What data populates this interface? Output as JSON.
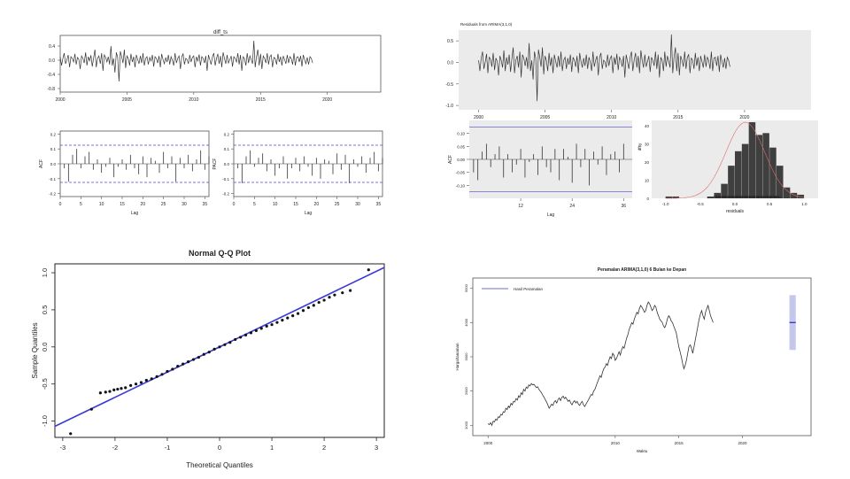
{
  "colors": {
    "line": "#333333",
    "blue": "#3b3bd6",
    "dashed": "#4b4bd6",
    "ggplot_bg": "#ebebeb",
    "bar": "#3f3f3f",
    "band": "#b7b9e6"
  },
  "chart_data": [
    {
      "id": "diff_series",
      "type": "line",
      "title": "diff_ts",
      "xlabel": "",
      "ylabel": "",
      "x_ticks": [
        "2000",
        "2005",
        "2010",
        "2015",
        "2020"
      ],
      "y_ticks": [
        "-0.8",
        "-0.4",
        "0.0",
        "0.4"
      ],
      "xlim": [
        2000,
        2024
      ],
      "ylim": [
        -0.9,
        0.7
      ],
      "series": [
        {
          "x_start": 2000,
          "x_step": 0.1,
          "values": [
            0.1,
            -0.15,
            0.05,
            0.2,
            -0.1,
            0.0,
            0.15,
            -0.2,
            0.1,
            0.05,
            -0.05,
            0.18,
            -0.12,
            0.08,
            0.02,
            -0.25,
            0.12,
            0.05,
            -0.08,
            0.22,
            -0.15,
            0.1,
            -0.02,
            0.14,
            -0.18,
            0.06,
            0.3,
            -0.2,
            0.05,
            0.12,
            -0.1,
            0.2,
            -0.3,
            0.15,
            0.08,
            -0.05,
            0.1,
            -0.12,
            0.4,
            -0.15,
            0.05,
            -0.35,
            0.22,
            0.08,
            -0.6,
            0.25,
            0.1,
            -0.08,
            0.3,
            -0.22,
            0.12,
            0.05,
            -0.15,
            0.18,
            -0.05,
            0.1,
            -0.2,
            0.15,
            0.02,
            -0.1,
            0.12,
            -0.08,
            0.2,
            -0.15,
            0.05,
            0.1,
            -0.12,
            0.08,
            -0.02,
            0.15,
            -0.18,
            0.1,
            0.05,
            -0.08,
            0.12,
            -0.2,
            0.18,
            0.02,
            -0.1,
            0.08,
            -0.05,
            0.15,
            -0.12,
            0.1,
            0.0,
            -0.15,
            0.2,
            -0.08,
            0.05,
            0.12,
            -0.25,
            0.1,
            0.18,
            -0.12,
            0.05,
            0.02,
            -0.1,
            0.15,
            -0.05,
            0.08,
            0.12,
            -0.2,
            0.1,
            -0.02,
            0.16,
            -0.15,
            0.1,
            0.05,
            -0.08,
            0.12,
            -0.3,
            0.15,
            0.02,
            -0.12,
            0.1,
            0.2,
            -0.15,
            0.05,
            0.18,
            -0.1,
            0.12,
            -0.2,
            0.22,
            0.05,
            -0.1,
            0.15,
            -0.08,
            0.02,
            0.12,
            -0.18,
            0.1,
            0.05,
            -0.05,
            0.2,
            -0.12,
            0.15,
            -0.3,
            0.1,
            0.05,
            -0.15,
            0.2,
            -0.08,
            0.12,
            0.02,
            -0.1,
            0.55,
            -0.2,
            0.1,
            0.3,
            -0.15,
            0.18,
            -0.25,
            0.12,
            0.05,
            -0.08,
            0.2,
            -0.12,
            0.1,
            0.15,
            -0.2,
            0.08,
            0.05,
            -0.12,
            0.18,
            -0.05,
            0.1,
            -0.15,
            0.12,
            0.02,
            -0.1,
            0.15,
            -0.08,
            0.1,
            0.05,
            -0.12,
            0.2,
            -0.15,
            0.08,
            0.1,
            -0.05,
            0.12,
            -0.18,
            0.15,
            0.02,
            -0.1,
            0.08,
            -0.12,
            0.1,
            0.05,
            -0.08
          ]
        }
      ]
    },
    {
      "id": "acf",
      "type": "bar",
      "xlabel": "Lag",
      "ylabel": "ACF",
      "x_ticks": [
        "0",
        "5",
        "10",
        "15",
        "20",
        "25",
        "30",
        "35"
      ],
      "y_ticks": [
        "-0.2",
        "-0.1",
        "0.0",
        "0.1",
        "0.2"
      ],
      "xlim": [
        0,
        36
      ],
      "ylim": [
        -0.22,
        0.22
      ],
      "conf": 0.125,
      "lags": [
        1,
        2,
        3,
        4,
        5,
        6,
        7,
        8,
        9,
        10,
        11,
        12,
        13,
        14,
        15,
        16,
        17,
        18,
        19,
        20,
        21,
        22,
        23,
        24,
        25,
        26,
        27,
        28,
        29,
        30,
        31,
        32,
        33,
        34,
        35,
        36
      ],
      "values": [
        -0.03,
        -0.12,
        0.06,
        0.1,
        -0.03,
        0.05,
        0.08,
        -0.04,
        0.03,
        -0.06,
        -0.02,
        0.04,
        -0.09,
        -0.02,
        0.03,
        -0.04,
        0.06,
        -0.03,
        -0.07,
        0.05,
        -0.09,
        0.04,
        0.02,
        -0.06,
        0.08,
        -0.03,
        0.05,
        -0.12,
        0.04,
        -0.03,
        0.06,
        -0.05,
        0.03,
        0.09,
        -0.04,
        0.05
      ]
    },
    {
      "id": "pacf",
      "type": "bar",
      "xlabel": "Lag",
      "ylabel": "PACF",
      "x_ticks": [
        "0",
        "5",
        "10",
        "15",
        "20",
        "25",
        "30",
        "35"
      ],
      "y_ticks": [
        "-0.2",
        "-0.1",
        "0.0",
        "0.1",
        "0.2"
      ],
      "xlim": [
        0,
        36
      ],
      "ylim": [
        -0.22,
        0.22
      ],
      "conf": 0.125,
      "lags": [
        1,
        2,
        3,
        4,
        5,
        6,
        7,
        8,
        9,
        10,
        11,
        12,
        13,
        14,
        15,
        16,
        17,
        18,
        19,
        20,
        21,
        22,
        23,
        24,
        25,
        26,
        27,
        28,
        29,
        30,
        31,
        32,
        33,
        34,
        35,
        36
      ],
      "values": [
        -0.03,
        -0.13,
        0.05,
        0.09,
        -0.02,
        0.04,
        0.07,
        -0.05,
        0.03,
        -0.08,
        -0.03,
        0.05,
        -0.1,
        -0.03,
        0.04,
        -0.05,
        0.05,
        -0.02,
        -0.08,
        0.04,
        -0.1,
        0.03,
        0.02,
        -0.07,
        0.07,
        -0.04,
        0.06,
        -0.13,
        0.03,
        -0.02,
        0.05,
        -0.06,
        0.04,
        0.08,
        -0.05,
        0.04
      ]
    },
    {
      "id": "residual_series",
      "type": "line",
      "title": "Residuals from ARIMA(3,1,0)",
      "x_ticks": [
        "2000",
        "2005",
        "2010",
        "2015",
        "2020"
      ],
      "y_ticks": [
        "0.5",
        "0.0",
        "-0.5",
        "-1.0"
      ],
      "xlim": [
        1998.5,
        2025
      ],
      "ylim": [
        -1.1,
        0.75
      ],
      "series": [
        {
          "x_start": 2000,
          "x_step": 0.1,
          "values": [
            0.05,
            -0.2,
            0.1,
            0.25,
            -0.15,
            0.0,
            0.2,
            -0.25,
            0.12,
            0.08,
            -0.1,
            0.22,
            -0.18,
            0.1,
            0.02,
            -0.3,
            0.15,
            0.05,
            -0.12,
            0.28,
            -0.2,
            0.12,
            -0.05,
            0.18,
            -0.22,
            0.08,
            0.35,
            -0.25,
            0.05,
            0.15,
            -0.12,
            0.25,
            -0.35,
            0.18,
            0.1,
            -0.08,
            0.12,
            -0.15,
            0.45,
            -0.2,
            0.05,
            -0.4,
            0.25,
            0.1,
            -0.9,
            0.3,
            0.12,
            -0.1,
            0.35,
            -0.28,
            0.15,
            0.05,
            -0.2,
            0.22,
            -0.08,
            0.12,
            -0.25,
            0.18,
            0.02,
            -0.12,
            0.15,
            -0.1,
            0.25,
            -0.2,
            0.05,
            0.12,
            -0.15,
            0.1,
            -0.05,
            0.18,
            -0.22,
            0.12,
            0.05,
            -0.1,
            0.15,
            -0.25,
            0.22,
            0.02,
            -0.12,
            0.1,
            -0.08,
            0.18,
            -0.15,
            0.12,
            0.0,
            -0.2,
            0.25,
            -0.1,
            0.05,
            0.15,
            -0.3,
            0.12,
            0.22,
            -0.15,
            0.05,
            0.02,
            -0.12,
            0.18,
            -0.08,
            0.1,
            0.15,
            -0.25,
            0.12,
            -0.05,
            0.2,
            -0.18,
            0.12,
            0.05,
            -0.1,
            0.15,
            -0.35,
            0.18,
            0.02,
            -0.15,
            0.12,
            0.25,
            -0.2,
            0.05,
            0.22,
            -0.12,
            0.15,
            -0.25,
            0.28,
            0.05,
            -0.12,
            0.18,
            -0.1,
            0.02,
            0.15,
            -0.22,
            0.12,
            0.05,
            -0.08,
            0.25,
            -0.15,
            0.18,
            -0.35,
            0.12,
            0.05,
            -0.2,
            0.25,
            -0.1,
            0.15,
            0.02,
            -0.12,
            0.65,
            -0.25,
            0.12,
            0.35,
            -0.2,
            0.22,
            -0.3,
            0.15,
            0.05,
            -0.1,
            0.25,
            -0.15,
            0.12,
            0.18,
            -0.25,
            0.1,
            0.05,
            -0.15,
            0.22,
            -0.08,
            0.12,
            -0.2,
            0.15,
            0.02,
            -0.12,
            0.18,
            -0.1,
            0.12,
            0.05,
            -0.15,
            0.25,
            -0.2,
            0.1,
            0.12,
            -0.08,
            0.15,
            -0.22,
            0.18,
            0.02,
            -0.12,
            0.1,
            -0.15,
            0.12,
            0.05,
            -0.1
          ]
        }
      ]
    },
    {
      "id": "residual_acf",
      "type": "bar",
      "xlabel": "Lag",
      "ylabel": "ACF",
      "x_ticks": [
        "12",
        "24",
        "36"
      ],
      "y_ticks": [
        "0.10",
        "0.05",
        "0.00",
        "-0.05",
        "-0.10"
      ],
      "xlim": [
        0,
        38
      ],
      "ylim": [
        -0.15,
        0.15
      ],
      "conf": 0.125,
      "lags": [
        1,
        2,
        3,
        4,
        5,
        6,
        7,
        8,
        9,
        10,
        11,
        12,
        13,
        14,
        15,
        16,
        17,
        18,
        19,
        20,
        21,
        22,
        23,
        24,
        25,
        26,
        27,
        28,
        29,
        30,
        31,
        32,
        33,
        34,
        35,
        36
      ],
      "values": [
        -0.05,
        -0.08,
        0.03,
        0.06,
        -0.03,
        0.02,
        0.05,
        -0.07,
        0.02,
        -0.05,
        -0.02,
        0.04,
        -0.07,
        -0.01,
        0.02,
        -0.06,
        0.05,
        -0.03,
        -0.05,
        0.04,
        -0.08,
        0.04,
        0.01,
        -0.09,
        0.06,
        -0.03,
        0.04,
        -0.1,
        0.03,
        -0.02,
        0.05,
        -0.06,
        0.02,
        0.03,
        -0.05,
        0.06
      ]
    },
    {
      "id": "residual_hist",
      "type": "bar",
      "xlabel": "residuals",
      "ylabel": "df$y",
      "x_ticks": [
        "-1.0",
        "-0.5",
        "0.0",
        "0.5",
        "1.0"
      ],
      "y_ticks": [
        "0",
        "10",
        "20",
        "30",
        "40"
      ],
      "xlim": [
        -1.2,
        1.2
      ],
      "ylim": [
        0,
        43
      ],
      "bin_edges": [
        -1.0,
        -0.9,
        -0.8,
        -0.7,
        -0.6,
        -0.5,
        -0.4,
        -0.3,
        -0.2,
        -0.1,
        0.0,
        0.1,
        0.2,
        0.3,
        0.4,
        0.5,
        0.6,
        0.7,
        0.8,
        0.9,
        1.0
      ],
      "counts": [
        1,
        1,
        0,
        0,
        0,
        0,
        1,
        3,
        8,
        18,
        26,
        30,
        42,
        35,
        36,
        28,
        18,
        6,
        3,
        2
      ]
    },
    {
      "id": "qq_plot",
      "type": "scatter",
      "title": "Normal Q-Q Plot",
      "xlabel": "Theoretical Quantiles",
      "ylabel": "Sample Quantiles",
      "x_ticks": [
        "-3",
        "-2",
        "-1",
        "0",
        "1",
        "2",
        "3"
      ],
      "y_ticks": [
        "-1.0",
        "-0.5",
        "0.0",
        "0.5",
        "1.0"
      ],
      "xlim": [
        -3.15,
        3.15
      ],
      "ylim": [
        -1.22,
        1.12
      ],
      "line": {
        "intercept": 0.0,
        "slope": 0.34
      },
      "x": [
        -2.85,
        -2.45,
        -2.28,
        -2.18,
        -2.1,
        -2.02,
        -1.95,
        -1.88,
        -1.8,
        -1.7,
        -1.6,
        -1.5,
        -1.4,
        -1.3,
        -1.2,
        -1.1,
        -1.0,
        -0.9,
        -0.8,
        -0.7,
        -0.6,
        -0.5,
        -0.4,
        -0.3,
        -0.2,
        -0.1,
        0.0,
        0.1,
        0.2,
        0.3,
        0.4,
        0.5,
        0.6,
        0.7,
        0.8,
        0.9,
        1.0,
        1.1,
        1.2,
        1.3,
        1.4,
        1.5,
        1.6,
        1.7,
        1.8,
        1.9,
        2.0,
        2.1,
        2.2,
        2.35,
        2.5,
        2.85
      ],
      "y": [
        -1.17,
        -0.84,
        -0.62,
        -0.61,
        -0.6,
        -0.58,
        -0.57,
        -0.56,
        -0.55,
        -0.52,
        -0.5,
        -0.48,
        -0.45,
        -0.43,
        -0.4,
        -0.37,
        -0.33,
        -0.3,
        -0.26,
        -0.23,
        -0.2,
        -0.17,
        -0.14,
        -0.1,
        -0.07,
        -0.03,
        0.0,
        0.03,
        0.06,
        0.1,
        0.13,
        0.16,
        0.19,
        0.22,
        0.25,
        0.28,
        0.3,
        0.33,
        0.36,
        0.39,
        0.42,
        0.45,
        0.49,
        0.53,
        0.56,
        0.6,
        0.63,
        0.67,
        0.7,
        0.73,
        0.76,
        1.04
      ]
    },
    {
      "id": "forecast",
      "type": "line",
      "title": "Peramalan ARIMA(3,1,0) 6 Bulan ke Depan",
      "xlabel": "Waktu",
      "ylabel": "Harga/tanaman",
      "legend": "Hasil Peramalan",
      "legend_position": "top-left",
      "x_ticks": [
        "2000",
        "2010",
        "2015",
        "2020"
      ],
      "y_ticks": [
        "5000",
        "4000",
        "3000",
        "2000",
        "1000"
      ],
      "xlim": [
        1998.8,
        2025.4
      ],
      "ylim": [
        700,
        5300
      ],
      "series": [
        {
          "name": "history",
          "x_start": 2000,
          "x_step": 0.1,
          "values": [
            1050,
            1020,
            1080,
            1000,
            1120,
            1100,
            1180,
            1150,
            1250,
            1230,
            1320,
            1300,
            1400,
            1380,
            1500,
            1460,
            1560,
            1520,
            1640,
            1600,
            1700,
            1680,
            1780,
            1740,
            1860,
            1820,
            1950,
            1900,
            2050,
            2000,
            2120,
            2080,
            2180,
            2150,
            2220,
            2180,
            2200,
            2150,
            2100,
            2130,
            2050,
            2000,
            1950,
            1880,
            1820,
            1750,
            1680,
            1600,
            1500,
            1550,
            1620,
            1580,
            1680,
            1720,
            1650,
            1750,
            1800,
            1720,
            1820,
            1850,
            1780,
            1820,
            1760,
            1700,
            1740,
            1650,
            1600,
            1680,
            1720,
            1650,
            1700,
            1620,
            1580,
            1650,
            1700,
            1600,
            1550,
            1620,
            1680,
            1750,
            1820,
            1900,
            1880,
            2000,
            2050,
            2150,
            2250,
            2350,
            2450,
            2400,
            2550,
            2650,
            2700,
            2800,
            2750,
            2900,
            3000,
            2950,
            3100,
            3050,
            2900,
            2950,
            3050,
            3150,
            3050,
            3200,
            3300,
            3250,
            3400,
            3550,
            3650,
            3800,
            3900,
            4000,
            3950,
            4100,
            4200,
            4300,
            4250,
            4400,
            4500,
            4450,
            4380,
            4300,
            4350,
            4500,
            4600,
            4550,
            4450,
            4350,
            4400,
            4500,
            4450,
            4300,
            4200,
            4100,
            4050,
            4000,
            3900,
            3850,
            3950,
            4100,
            4200,
            4150,
            4050,
            4000,
            3900,
            3800,
            3700,
            3500,
            3300,
            3150,
            3000,
            2800,
            2650,
            2750,
            2900,
            3100,
            3300,
            3350,
            3250,
            3100,
            3300,
            3500,
            3700,
            3900,
            4100,
            4250,
            4350,
            4200,
            4100,
            4300,
            4400,
            4500,
            4350,
            4200,
            4100,
            4000
          ]
        }
      ],
      "forecast": {
        "x_start": 2023.7,
        "x_end": 2024.2,
        "value": 4000,
        "band": [
          3200,
          4800
        ]
      }
    }
  ]
}
